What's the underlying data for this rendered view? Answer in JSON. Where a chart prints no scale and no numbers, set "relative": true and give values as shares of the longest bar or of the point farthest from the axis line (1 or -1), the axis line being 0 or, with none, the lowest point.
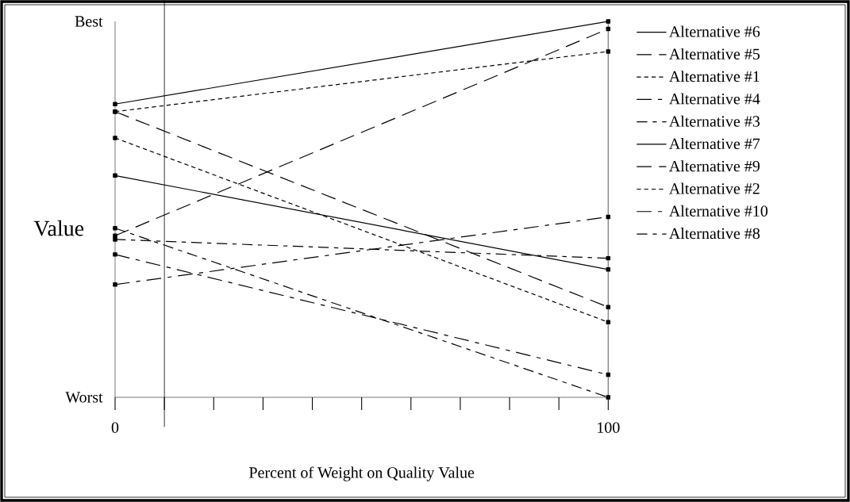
{
  "chart_data": {
    "type": "line",
    "xlabel": "Percent of Weight on Quality Value",
    "ylabel": "Value",
    "x": [
      0,
      100
    ],
    "series": [
      {
        "name": "Alternative #6",
        "color": "#000000",
        "line_style": "solid",
        "values": [
          0.78,
          1.0
        ]
      },
      {
        "name": "Alternative #5",
        "color": "#000000",
        "line_style": "longdash",
        "values": [
          0.76,
          0.24
        ]
      },
      {
        "name": "Alternative #1",
        "color": "#000000",
        "line_style": "dashed",
        "values": [
          0.76,
          0.92
        ]
      },
      {
        "name": "Alternative #4",
        "color": "#000000",
        "line_style": "dashdot",
        "values": [
          0.3,
          0.48
        ]
      },
      {
        "name": "Alternative #3",
        "color": "#000000",
        "line_style": "dashdashdot",
        "values": [
          0.45,
          0.0
        ]
      },
      {
        "name": "Alternative #7",
        "color": "#000000",
        "line_style": "solid",
        "values": [
          0.59,
          0.34
        ]
      },
      {
        "name": "Alternative #9",
        "color": "#000000",
        "line_style": "longdash",
        "values": [
          0.43,
          0.98
        ]
      },
      {
        "name": "Alternative #2",
        "color": "#000000",
        "line_style": "dashed",
        "values": [
          0.69,
          0.2
        ]
      },
      {
        "name": "Alternative #10",
        "color": "#000000",
        "line_style": "dashdot",
        "values": [
          0.38,
          0.06
        ]
      },
      {
        "name": "Alternative #8",
        "color": "#000000",
        "line_style": "dashdashdot",
        "values": [
          0.42,
          0.37
        ]
      }
    ],
    "xlim": [
      0,
      100
    ],
    "xticks": [
      0,
      {
        "value": 10,
        "label": null
      },
      {
        "value": 20,
        "label": null
      },
      {
        "value": 30,
        "label": null
      },
      {
        "value": 40,
        "label": null
      },
      {
        "value": 50,
        "label": null
      },
      {
        "value": 60,
        "label": null
      },
      {
        "value": 70,
        "label": null
      },
      {
        "value": 80,
        "label": null
      },
      {
        "value": 90,
        "label": null
      },
      100
    ],
    "relative": true,
    "annotations": [
      "Best",
      "Worst"
    ],
    "ref_lines": [
      {
        "axis": "x",
        "value": 10,
        "color": "#000000"
      }
    ],
    "marker": "square",
    "grid": false,
    "legend": "right"
  }
}
